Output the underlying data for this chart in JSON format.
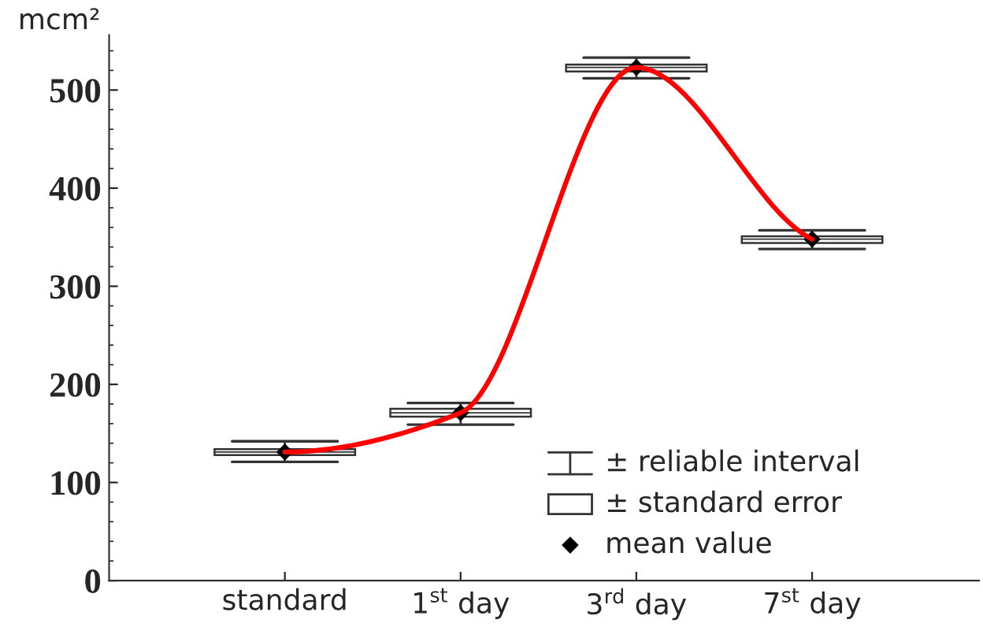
{
  "chart_data": {
    "type": "box",
    "ylabel": "mcm²",
    "categories": [
      "standard",
      "1$^{st}$ day",
      "3$^{rd}$ day",
      "7$^{st}$ day"
    ],
    "ylim": [
      0,
      556
    ],
    "yticks": [
      0,
      100,
      200,
      300,
      400,
      500
    ],
    "grid": false,
    "annotations": [
      "± reliable interval",
      "± standard error",
      "mean value"
    ],
    "series": [
      {
        "color": "#ffffff",
        "boxes": [
          {
            "low": 121,
            "q1": 128,
            "median": 131,
            "q3": 134,
            "high": 142,
            "mean": 131
          },
          {
            "low": 159,
            "q1": 167,
            "median": 171,
            "q3": 175,
            "high": 181,
            "mean": 171
          },
          {
            "low": 512,
            "q1": 519,
            "median": 523,
            "q3": 526,
            "high": 533,
            "mean": 523
          },
          {
            "low": 338,
            "q1": 344,
            "median": 348,
            "q3": 351,
            "high": 357,
            "mean": 348
          }
        ]
      },
      {
        "type": "line",
        "color": "#ff0000",
        "values": [
          131,
          171,
          523,
          348
        ]
      }
    ]
  }
}
